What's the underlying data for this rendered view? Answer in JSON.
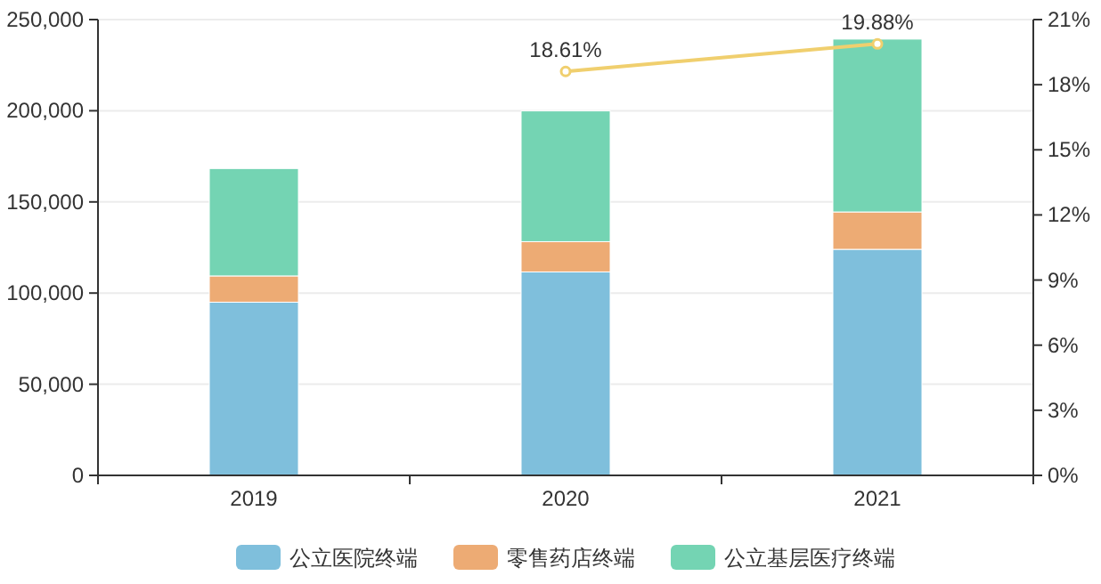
{
  "chart_data": {
    "type": "bar",
    "stacked": true,
    "categories": [
      "2019",
      "2020",
      "2021"
    ],
    "series": [
      {
        "name": "公立医院终端",
        "color": "#7fbfdc",
        "values": [
          95000,
          111600,
          124000
        ]
      },
      {
        "name": "零售药店终端",
        "color": "#edab74",
        "values": [
          14400,
          16600,
          20500
        ]
      },
      {
        "name": "公立基层医疗终端",
        "color": "#74d4b3",
        "values": [
          58900,
          71700,
          94800
        ]
      },
      {
        "type": "line",
        "axis": "y2",
        "color": "#f0cf6e",
        "marker": "circle",
        "values": [
          null,
          18.61,
          19.88
        ],
        "value_labels": [
          null,
          "18.61%",
          "19.88%"
        ]
      }
    ],
    "ylim": [
      0,
      250000
    ],
    "yticks": [
      {
        "value": 0,
        "label": "0"
      },
      {
        "value": 50000,
        "label": "50,000"
      },
      {
        "value": 100000,
        "label": "100,000"
      },
      {
        "value": 150000,
        "label": "150,000"
      },
      {
        "value": 200000,
        "label": "200,000"
      },
      {
        "value": 250000,
        "label": "250,000"
      }
    ],
    "y2lim": [
      0,
      21
    ],
    "y2ticks": [
      {
        "value": 0,
        "label": "0%"
      },
      {
        "value": 3,
        "label": "3%"
      },
      {
        "value": 6,
        "label": "6%"
      },
      {
        "value": 9,
        "label": "9%"
      },
      {
        "value": 12,
        "label": "12%"
      },
      {
        "value": 15,
        "label": "15%"
      },
      {
        "value": 18,
        "label": "18%"
      },
      {
        "value": 21,
        "label": "21%"
      }
    ],
    "grid": "y",
    "legend": "bottom"
  }
}
